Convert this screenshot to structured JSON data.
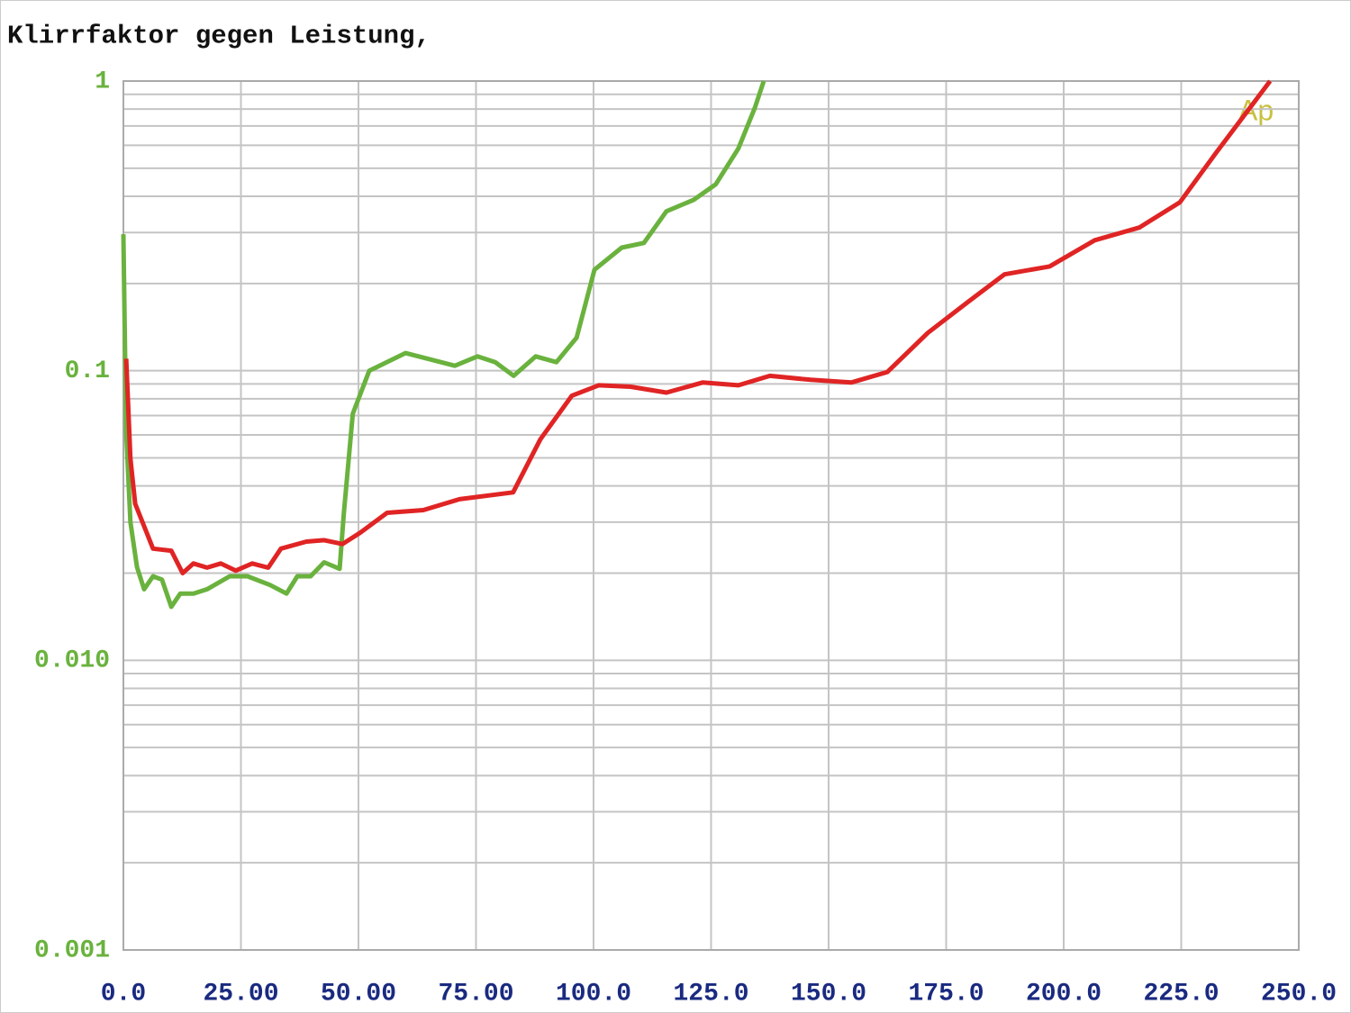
{
  "chart_data": {
    "type": "line",
    "title": "Klirrfaktor gegen Leistung,",
    "logo": "Ap",
    "ylog": true,
    "grid": true,
    "xlim": [
      0,
      250
    ],
    "xticks": [
      {
        "value": 0,
        "label": "0.0"
      },
      {
        "value": 25,
        "label": "25.00"
      },
      {
        "value": 50,
        "label": "50.00"
      },
      {
        "value": 75,
        "label": "75.00"
      },
      {
        "value": 100,
        "label": "100.0"
      },
      {
        "value": 125,
        "label": "125.0"
      },
      {
        "value": 150,
        "label": "150.0"
      },
      {
        "value": 175,
        "label": "175.0"
      },
      {
        "value": 200,
        "label": "200.0"
      },
      {
        "value": 225,
        "label": "225.0"
      },
      {
        "value": 250,
        "label": "250.0"
      }
    ],
    "ylim": [
      0.001,
      1
    ],
    "yticks": [
      0.001,
      {
        "value": 0.01,
        "label": "0.010"
      },
      0.1,
      1
    ],
    "series": [
      {
        "color": "#6ab23e",
        "x": [
          0,
          0.6,
          1.5,
          2.9,
          4.4,
          6.3,
          8.2,
          10.2,
          12.1,
          14.9,
          17.8,
          22.6,
          26.4,
          31.2,
          34.7,
          37,
          39.8,
          42.7,
          46,
          46.9,
          48.8,
          52.3,
          60,
          70.5,
          75.3,
          79.1,
          83,
          87.7,
          92.1,
          96.4,
          100.2,
          106,
          110.7,
          115.5,
          121.3,
          126,
          130.8,
          134.3,
          136.2
        ],
        "values": [
          0.296,
          0.0615,
          0.03,
          0.021,
          0.0176,
          0.0195,
          0.019,
          0.0153,
          0.017,
          0.017,
          0.0176,
          0.0195,
          0.0195,
          0.0182,
          0.017,
          0.0195,
          0.0195,
          0.0218,
          0.0207,
          0.0323,
          0.071,
          0.1,
          0.115,
          0.104,
          0.112,
          0.107,
          0.096,
          0.112,
          0.107,
          0.13,
          0.223,
          0.266,
          0.276,
          0.355,
          0.389,
          0.44,
          0.585,
          0.807,
          1.0
        ]
      },
      {
        "color": "#e02424",
        "x": [
          0.6,
          1.5,
          2.5,
          6.3,
          10.2,
          12.6,
          14.9,
          17.8,
          20.7,
          23.9,
          27.4,
          30.8,
          33.5,
          38.9,
          42.7,
          46.6,
          50.4,
          56.1,
          63.8,
          71.5,
          82.9,
          88.7,
          95.4,
          101.1,
          107.9,
          115.5,
          123.2,
          130.8,
          137.5,
          146.2,
          154.8,
          162.5,
          171.1,
          179.7,
          187.4,
          197,
          206.6,
          216.1,
          224.7,
          232.4,
          243.9
        ],
        "values": [
          0.11,
          0.0497,
          0.0347,
          0.0243,
          0.0239,
          0.02,
          0.0216,
          0.0209,
          0.0216,
          0.0204,
          0.0216,
          0.0209,
          0.0243,
          0.0257,
          0.026,
          0.0252,
          0.0276,
          0.0323,
          0.033,
          0.036,
          0.038,
          0.058,
          0.082,
          0.089,
          0.088,
          0.084,
          0.091,
          0.089,
          0.096,
          0.093,
          0.091,
          0.099,
          0.135,
          0.173,
          0.215,
          0.229,
          0.282,
          0.312,
          0.381,
          0.565,
          1.0
        ]
      }
    ]
  }
}
